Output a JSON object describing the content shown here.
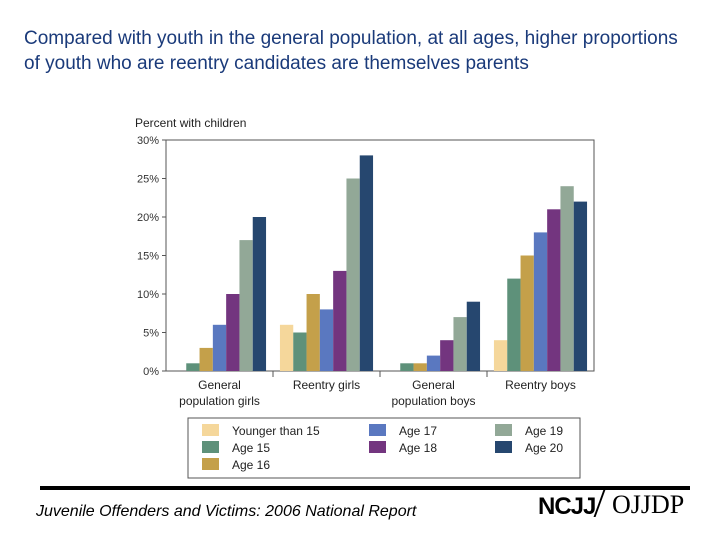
{
  "title": "Compared with youth in the general population, at all ages, higher proportions of youth who are reentry candidates are themselves parents",
  "footer": {
    "report": "Juvenile Offenders and Victims: 2006 National Report",
    "logo_left": "NCJJ",
    "logo_right": "OJJDP"
  },
  "chart_data": {
    "type": "bar",
    "ylabel": "Percent with children",
    "ylim": [
      0,
      30
    ],
    "yticks": [
      "0%",
      "5%",
      "10%",
      "15%",
      "20%",
      "25%",
      "30%"
    ],
    "grid": false,
    "legend_position": "bottom",
    "categories": [
      [
        "General",
        "population girls"
      ],
      [
        "Reentry girls"
      ],
      [
        "General",
        "population boys"
      ],
      [
        "Reentry boys"
      ]
    ],
    "series": [
      {
        "name": "Younger than 15",
        "color": "#f5d79b",
        "values": [
          0,
          6,
          0,
          4
        ]
      },
      {
        "name": "Age 15",
        "color": "#5e917a",
        "values": [
          1,
          5,
          1,
          12
        ]
      },
      {
        "name": "Age 16",
        "color": "#c4a04a",
        "values": [
          3,
          10,
          1,
          15
        ]
      },
      {
        "name": "Age 17",
        "color": "#5a78c0",
        "values": [
          6,
          8,
          2,
          18
        ]
      },
      {
        "name": "Age 18",
        "color": "#73357f",
        "values": [
          10,
          13,
          4,
          21
        ]
      },
      {
        "name": "Age 19",
        "color": "#92a897",
        "values": [
          17,
          25,
          7,
          24
        ]
      },
      {
        "name": "Age 20",
        "color": "#26476f",
        "values": [
          20,
          28,
          9,
          22
        ]
      }
    ]
  }
}
